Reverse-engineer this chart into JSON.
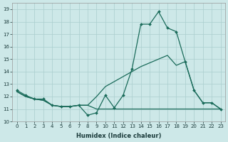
{
  "xlabel": "Humidex (Indice chaleur)",
  "xlim": [
    -0.5,
    23.5
  ],
  "ylim": [
    10,
    19.5
  ],
  "yticks": [
    10,
    11,
    12,
    13,
    14,
    15,
    16,
    17,
    18,
    19
  ],
  "xticks": [
    0,
    1,
    2,
    3,
    4,
    5,
    6,
    7,
    8,
    9,
    10,
    11,
    12,
    13,
    14,
    15,
    16,
    17,
    18,
    19,
    20,
    21,
    22,
    23
  ],
  "bg": "#cde8e8",
  "grid_color": "#aacece",
  "lc": "#1a6b5a",
  "line1_y": [
    12.5,
    12.1,
    11.8,
    11.8,
    11.3,
    11.2,
    11.2,
    11.3,
    10.5,
    10.7,
    12.1,
    11.1,
    12.1,
    14.2,
    17.8,
    17.8,
    18.8,
    17.5,
    17.2,
    14.8,
    12.5,
    11.5,
    11.5,
    11.0
  ],
  "line2_y": [
    12.4,
    12.0,
    11.8,
    11.7,
    11.3,
    11.2,
    11.2,
    11.3,
    11.3,
    11.0,
    11.0,
    11.0,
    11.0,
    11.0,
    11.0,
    11.0,
    11.0,
    11.0,
    11.0,
    11.0,
    11.0,
    11.0,
    11.0,
    11.0
  ],
  "line3_y": [
    12.4,
    12.0,
    11.8,
    11.7,
    11.3,
    11.2,
    11.2,
    11.3,
    11.3,
    12.0,
    12.8,
    13.2,
    13.6,
    14.0,
    14.4,
    14.7,
    15.0,
    15.3,
    14.5,
    14.8,
    12.5,
    11.5,
    11.5,
    11.0
  ],
  "xlabel_fontsize": 6.0,
  "tick_fontsize": 5.0,
  "lw": 0.9,
  "marker_size": 2.0
}
